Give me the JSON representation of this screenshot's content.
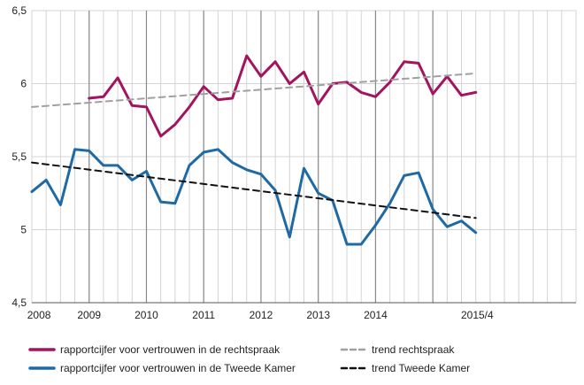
{
  "chart_data": {
    "type": "line",
    "title": "",
    "xlabel": "",
    "ylabel": "",
    "ylim": [
      4.5,
      6.5
    ],
    "yticks": [
      4.5,
      5,
      5.5,
      6,
      6.5
    ],
    "ytick_labels": [
      "4,5",
      "5",
      "5,5",
      "6",
      "6,5"
    ],
    "xlim": [
      0,
      38
    ],
    "xticks": [
      {
        "label": "2008",
        "x": 0.5
      },
      {
        "label": "2009",
        "x": 4
      },
      {
        "label": "2010",
        "x": 8
      },
      {
        "label": "2011",
        "x": 12
      },
      {
        "label": "2012",
        "x": 16
      },
      {
        "label": "2013",
        "x": 20
      },
      {
        "label": "2014",
        "x": 24
      },
      {
        "label": "2015/4",
        "x": 31.1
      }
    ],
    "year_boundaries": [
      4,
      8,
      12,
      16,
      20,
      24,
      28
    ],
    "grid": true,
    "series": [
      {
        "name": "rapportcijfer voor vertrouwen in de rechtspraak",
        "color": "#a3145f",
        "dash": false,
        "x": [
          4,
          5,
          6,
          7,
          8,
          9,
          10,
          11,
          12,
          13,
          14,
          15,
          16,
          17,
          18,
          19,
          20,
          21,
          22,
          23,
          24,
          25,
          26,
          27,
          28,
          29,
          30,
          31
        ],
        "values": [
          5.9,
          5.91,
          6.04,
          5.85,
          5.84,
          5.64,
          5.72,
          5.84,
          5.98,
          5.89,
          5.9,
          6.19,
          6.05,
          6.15,
          6.0,
          6.08,
          5.86,
          6.0,
          6.01,
          5.94,
          5.91,
          6.01,
          6.15,
          6.14,
          5.93,
          6.05,
          5.92,
          5.94
        ]
      },
      {
        "name": "rapportcijfer voor vertrouwen in de Tweede Kamer",
        "color": "#1f6aa5",
        "dash": false,
        "x": [
          0,
          1,
          2,
          3,
          4,
          5,
          6,
          7,
          8,
          9,
          10,
          11,
          12,
          13,
          14,
          15,
          16,
          17,
          18,
          19,
          20,
          21,
          22,
          23,
          24,
          25,
          26,
          27,
          28,
          29,
          30,
          31
        ],
        "values": [
          5.26,
          5.34,
          5.17,
          5.55,
          5.54,
          5.44,
          5.44,
          5.34,
          5.4,
          5.19,
          5.18,
          5.44,
          5.53,
          5.55,
          5.46,
          5.41,
          5.38,
          5.27,
          4.95,
          5.42,
          5.25,
          5.2,
          4.9,
          4.9,
          5.03,
          5.18,
          5.37,
          5.39,
          5.14,
          5.02,
          5.06,
          4.98
        ]
      },
      {
        "name": "trend rechtspraak",
        "color": "#a0a0a0",
        "dash": true,
        "x": [
          0,
          31
        ],
        "values": [
          5.84,
          6.07
        ]
      },
      {
        "name": "trend Tweede Kamer",
        "color": "#111111",
        "dash": true,
        "x": [
          0,
          31
        ],
        "values": [
          5.46,
          5.08
        ]
      }
    ],
    "legend": {
      "placement": "bottom",
      "items": [
        {
          "label": "rapportcijfer voor vertrouwen in de rechtspraak",
          "color": "#a3145f",
          "dash": false
        },
        {
          "label": "trend rechtspraak",
          "color": "#a0a0a0",
          "dash": true
        },
        {
          "label": "rapportcijfer voor vertrouwen in de Tweede Kamer",
          "color": "#1f6aa5",
          "dash": false
        },
        {
          "label": "trend Tweede Kamer",
          "color": "#111111",
          "dash": true
        }
      ]
    }
  }
}
